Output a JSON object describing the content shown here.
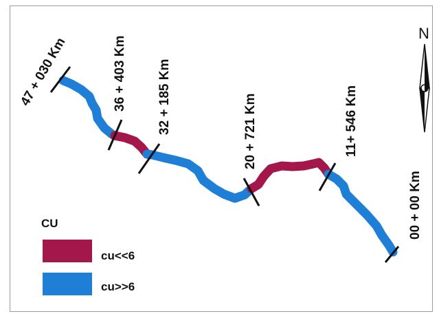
{
  "map": {
    "colors": {
      "low_cu": "#a3174a",
      "high_cu": "#1f7fd6",
      "marker": "#111111"
    },
    "chainages": [
      "47 + 030 Km",
      "36 + 403 Km",
      "32 + 185 Km",
      "20 + 721 Km",
      "11+ 546 Km",
      "00 + 00 Km"
    ],
    "north_arrow": {
      "label": "N",
      "icon": "north-arrow-icon"
    },
    "legend": {
      "title": "CU",
      "items": [
        {
          "label": "cu<<6",
          "color": "#a3174a"
        },
        {
          "label": "cu>>6",
          "color": "#1f7fd6"
        }
      ]
    }
  }
}
